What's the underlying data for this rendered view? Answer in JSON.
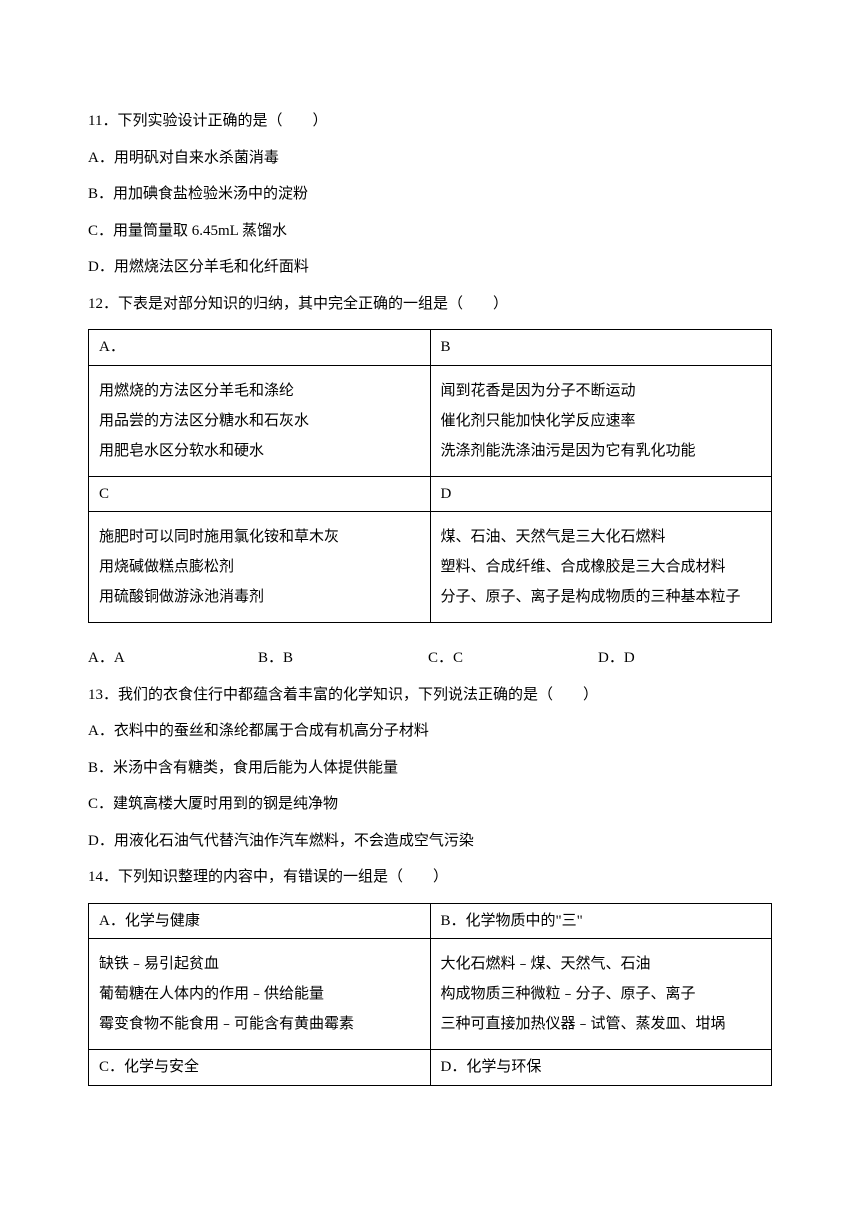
{
  "q11": {
    "stem": "11．下列实验设计正确的是（　　）",
    "A": "A．用明矾对自来水杀菌消毒",
    "B": "B．用加碘食盐检验米汤中的淀粉",
    "C": "C．用量筒量取 6.45mL 蒸馏水",
    "D": "D．用燃烧法区分羊毛和化纤面料"
  },
  "q12": {
    "stem": "12．下表是对部分知识的归纳，其中完全正确的一组是（　　）",
    "cellA_head": "A．",
    "cellB_head": "B",
    "cellC_head": "C",
    "cellD_head": "D",
    "cellA_l1": "用燃烧的方法区分羊毛和涤纶",
    "cellA_l2": "用品尝的方法区分糖水和石灰水",
    "cellA_l3": "用肥皂水区分软水和硬水",
    "cellB_l1": "闻到花香是因为分子不断运动",
    "cellB_l2": "催化剂只能加快化学反应速率",
    "cellB_l3": "洗涤剂能洗涤油污是因为它有乳化功能",
    "cellC_l1": "施肥时可以同时施用氯化铵和草木灰",
    "cellC_l2": "用烧碱做糕点膨松剂",
    "cellC_l3": "用硫酸铜做游泳池消毒剂",
    "cellD_l1": "煤、石油、天然气是三大化石燃料",
    "cellD_l2": "塑料、合成纤维、合成橡胶是三大合成材料",
    "cellD_l3": "分子、原子、离子是构成物质的三种基本粒子",
    "mcA": "A．A",
    "mcB": "B．B",
    "mcC": "C．C",
    "mcD": "D．D"
  },
  "q13": {
    "stem": "13．我们的衣食住行中都蕴含着丰富的化学知识，下列说法正确的是（　　）",
    "A": "A．衣料中的蚕丝和涤纶都属于合成有机高分子材料",
    "B": "B．米汤中含有糖类，食用后能为人体提供能量",
    "C": "C．建筑高楼大厦时用到的钢是纯净物",
    "D": "D．用液化石油气代替汽油作汽车燃料，不会造成空气污染"
  },
  "q14": {
    "stem": "14．下列知识整理的内容中，有错误的一组是（　　）",
    "cellA_head": "A．化学与健康",
    "cellB_head": "B．化学物质中的\"三\"",
    "cellA_l1": "缺铁﹣易引起贫血",
    "cellA_l2": "葡萄糖在人体内的作用﹣供给能量",
    "cellA_l3": "霉变食物不能食用﹣可能含有黄曲霉素",
    "cellB_l1": "大化石燃料﹣煤、天然气、石油",
    "cellB_l2": "构成物质三种微粒﹣分子、原子、离子",
    "cellB_l3": "三种可直接加热仪器﹣试管、蒸发皿、坩埚",
    "cellC_head": "C．化学与安全",
    "cellD_head": "D．化学与环保"
  }
}
